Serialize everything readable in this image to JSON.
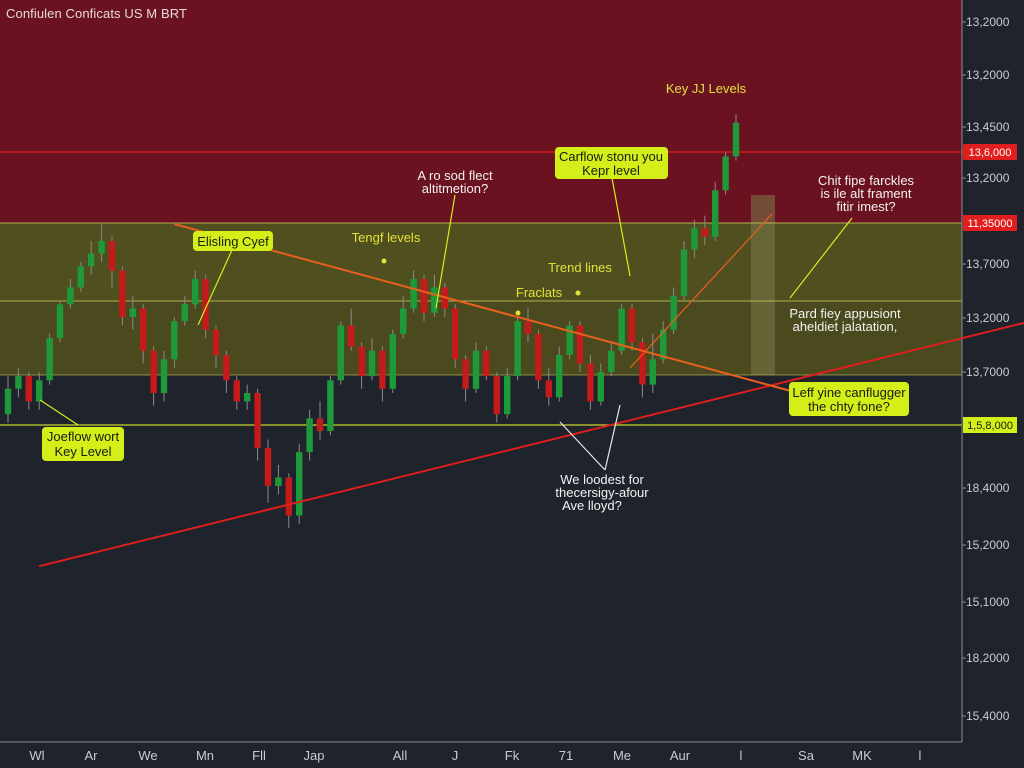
{
  "header": {
    "title": "Confiulen Conficats US M BRT"
  },
  "colors": {
    "background": "#1f232b",
    "resistance_zone": "#6b1220",
    "support_zone": "#4a4a1e",
    "bullish": "#1f9a3a",
    "bearish": "#c41a1a",
    "trendline": "#e01e1e",
    "descending_line": "#e8601e",
    "callout": "#d4ee1a",
    "level_line": "#c9d62a",
    "resistance_line": "#e01e1e"
  },
  "chart_data": {
    "type": "candlestick",
    "title": "Confiulen Conficats US M BRT",
    "y_ticks": [
      "13,2000",
      "13,2000",
      "13,4500",
      "13,2000",
      "13,7000",
      "13,2000",
      "13,7000",
      "18,4000",
      "15,2000",
      "15,1000",
      "18,2000",
      "15,4000"
    ],
    "x_ticks": [
      "Wl",
      "Ar",
      "We",
      "Mn",
      "Fll",
      "Jap",
      "All",
      "J",
      "Fk",
      "71",
      "Me",
      "Aur",
      "l",
      "Sa",
      "MK",
      "l"
    ],
    "level_labels": [
      {
        "text": "13,6,000",
        "color": "#e01e1e"
      },
      {
        "text": "11,35000",
        "color": "#e01e1e"
      },
      {
        "text": "1,5,8,000",
        "color": "#d4ee1a"
      }
    ],
    "zones": [
      {
        "name": "resistance",
        "from": 13.0,
        "to": 14.9
      },
      {
        "name": "support",
        "from": 10.5,
        "to": 13.0
      }
    ],
    "candles": [
      {
        "o": 10.4,
        "c": 11.0,
        "h": 11.3,
        "l": 10.2
      },
      {
        "o": 11.0,
        "c": 11.3,
        "h": 11.5,
        "l": 10.8
      },
      {
        "o": 11.3,
        "c": 10.7,
        "h": 11.4,
        "l": 10.5
      },
      {
        "o": 10.7,
        "c": 11.2,
        "h": 11.4,
        "l": 10.5
      },
      {
        "o": 11.2,
        "c": 12.2,
        "h": 12.3,
        "l": 11.1
      },
      {
        "o": 12.2,
        "c": 13.0,
        "h": 13.1,
        "l": 12.1
      },
      {
        "o": 13.0,
        "c": 13.4,
        "h": 13.6,
        "l": 12.9
      },
      {
        "o": 13.4,
        "c": 13.9,
        "h": 14.0,
        "l": 13.3
      },
      {
        "o": 13.9,
        "c": 14.2,
        "h": 14.5,
        "l": 13.7
      },
      {
        "o": 14.2,
        "c": 14.5,
        "h": 14.9,
        "l": 14.0
      },
      {
        "o": 14.5,
        "c": 13.8,
        "h": 14.6,
        "l": 13.4
      },
      {
        "o": 13.8,
        "c": 12.7,
        "h": 13.9,
        "l": 12.5
      },
      {
        "o": 12.7,
        "c": 12.9,
        "h": 13.2,
        "l": 12.4
      },
      {
        "o": 12.9,
        "c": 11.9,
        "h": 13.0,
        "l": 11.6
      },
      {
        "o": 11.9,
        "c": 10.9,
        "h": 12.0,
        "l": 10.6
      },
      {
        "o": 10.9,
        "c": 11.7,
        "h": 11.9,
        "l": 10.7
      },
      {
        "o": 11.7,
        "c": 12.6,
        "h": 12.7,
        "l": 11.5
      },
      {
        "o": 12.6,
        "c": 13.0,
        "h": 13.2,
        "l": 12.5
      },
      {
        "o": 13.0,
        "c": 13.6,
        "h": 13.8,
        "l": 12.9
      },
      {
        "o": 13.6,
        "c": 12.4,
        "h": 13.7,
        "l": 12.2
      },
      {
        "o": 12.4,
        "c": 11.8,
        "h": 12.5,
        "l": 11.5
      },
      {
        "o": 11.8,
        "c": 11.2,
        "h": 11.9,
        "l": 10.9
      },
      {
        "o": 11.2,
        "c": 10.7,
        "h": 11.3,
        "l": 10.5
      },
      {
        "o": 10.7,
        "c": 10.9,
        "h": 11.1,
        "l": 10.5
      },
      {
        "o": 10.9,
        "c": 9.6,
        "h": 11.0,
        "l": 9.3
      },
      {
        "o": 9.6,
        "c": 8.7,
        "h": 9.8,
        "l": 8.3
      },
      {
        "o": 8.7,
        "c": 8.9,
        "h": 9.2,
        "l": 8.5
      },
      {
        "o": 8.9,
        "c": 8.0,
        "h": 9.0,
        "l": 7.7
      },
      {
        "o": 8.0,
        "c": 9.5,
        "h": 9.7,
        "l": 7.8
      },
      {
        "o": 9.5,
        "c": 10.3,
        "h": 10.5,
        "l": 9.3
      },
      {
        "o": 10.3,
        "c": 10.0,
        "h": 10.7,
        "l": 9.8
      },
      {
        "o": 10.0,
        "c": 11.2,
        "h": 11.3,
        "l": 9.9
      },
      {
        "o": 11.2,
        "c": 12.5,
        "h": 12.6,
        "l": 11.1
      },
      {
        "o": 12.5,
        "c": 12.0,
        "h": 12.9,
        "l": 11.9
      },
      {
        "o": 12.0,
        "c": 11.3,
        "h": 12.1,
        "l": 11.0
      },
      {
        "o": 11.3,
        "c": 11.9,
        "h": 12.2,
        "l": 11.2
      },
      {
        "o": 11.9,
        "c": 11.0,
        "h": 12.0,
        "l": 10.7
      },
      {
        "o": 11.0,
        "c": 12.3,
        "h": 12.4,
        "l": 10.9
      },
      {
        "o": 12.3,
        "c": 12.9,
        "h": 13.2,
        "l": 12.2
      },
      {
        "o": 12.9,
        "c": 13.6,
        "h": 13.8,
        "l": 12.8
      },
      {
        "o": 13.6,
        "c": 12.8,
        "h": 13.7,
        "l": 12.6
      },
      {
        "o": 12.8,
        "c": 13.4,
        "h": 13.7,
        "l": 12.7
      },
      {
        "o": 13.4,
        "c": 12.9,
        "h": 13.5,
        "l": 12.7
      },
      {
        "o": 12.9,
        "c": 11.7,
        "h": 13.0,
        "l": 11.5
      },
      {
        "o": 11.7,
        "c": 11.0,
        "h": 11.8,
        "l": 10.7
      },
      {
        "o": 11.0,
        "c": 11.9,
        "h": 12.1,
        "l": 10.9
      },
      {
        "o": 11.9,
        "c": 11.3,
        "h": 12.0,
        "l": 11.2
      },
      {
        "o": 11.3,
        "c": 10.4,
        "h": 11.4,
        "l": 10.2
      },
      {
        "o": 10.4,
        "c": 11.3,
        "h": 11.5,
        "l": 10.3
      },
      {
        "o": 11.3,
        "c": 12.6,
        "h": 12.7,
        "l": 11.2
      },
      {
        "o": 12.6,
        "c": 12.3,
        "h": 12.9,
        "l": 12.1
      },
      {
        "o": 12.3,
        "c": 11.2,
        "h": 12.4,
        "l": 11.0
      },
      {
        "o": 11.2,
        "c": 10.8,
        "h": 11.5,
        "l": 10.6
      },
      {
        "o": 10.8,
        "c": 11.8,
        "h": 12.0,
        "l": 10.7
      },
      {
        "o": 11.8,
        "c": 12.5,
        "h": 12.6,
        "l": 11.7
      },
      {
        "o": 12.5,
        "c": 11.6,
        "h": 12.6,
        "l": 11.4
      },
      {
        "o": 11.6,
        "c": 10.7,
        "h": 11.8,
        "l": 10.5
      },
      {
        "o": 10.7,
        "c": 11.4,
        "h": 11.6,
        "l": 10.6
      },
      {
        "o": 11.4,
        "c": 11.9,
        "h": 12.1,
        "l": 11.3
      },
      {
        "o": 11.9,
        "c": 12.9,
        "h": 13.0,
        "l": 11.8
      },
      {
        "o": 12.9,
        "c": 12.1,
        "h": 13.0,
        "l": 11.9
      },
      {
        "o": 12.1,
        "c": 11.1,
        "h": 12.2,
        "l": 10.8
      },
      {
        "o": 11.1,
        "c": 11.7,
        "h": 12.3,
        "l": 10.9
      },
      {
        "o": 11.7,
        "c": 12.4,
        "h": 12.6,
        "l": 11.6
      },
      {
        "o": 12.4,
        "c": 13.2,
        "h": 13.4,
        "l": 12.3
      },
      {
        "o": 13.2,
        "c": 14.3,
        "h": 14.5,
        "l": 13.1
      },
      {
        "o": 14.3,
        "c": 14.8,
        "h": 15.0,
        "l": 14.1
      },
      {
        "o": 14.8,
        "c": 14.6,
        "h": 15.1,
        "l": 14.4
      },
      {
        "o": 14.6,
        "c": 15.7,
        "h": 15.9,
        "l": 14.5
      },
      {
        "o": 15.7,
        "c": 16.5,
        "h": 16.6,
        "l": 15.6
      },
      {
        "o": 16.5,
        "c": 17.3,
        "h": 17.5,
        "l": 16.4
      }
    ],
    "lines": [
      {
        "name": "ascending-support",
        "from": [
          3,
          6.8
        ],
        "to": [
          100,
          12.7
        ],
        "color": "#e01e1e"
      },
      {
        "name": "descending-resistance",
        "from": [
          16,
          14.9
        ],
        "to": [
          76,
          10.9
        ],
        "color": "#e8601e"
      }
    ]
  },
  "annotations": {
    "callout_left": [
      "Joeflow wort",
      "Key Level"
    ],
    "callout_blissing": "Elisling Cyef",
    "callout_center": [
      "Carflow stonu you",
      "Kepr level"
    ],
    "callout_right": [
      "Leff yine canflugger",
      "the chty fone?"
    ],
    "label_key_levels": "Key JJ Levels",
    "label_tengf": "Tengf levels",
    "label_trend": "Trend lines",
    "label_fraclats": "Fraclats",
    "note_center": [
      "A ro sod flect",
      "altitmetion?"
    ],
    "note_right_top": [
      "Chit fipe farckles",
      "is ile alt frament",
      "fitir imest?"
    ],
    "note_right_mid": [
      "Pard fiey appusiont",
      "aheldiet jalatation,"
    ],
    "note_bottom": [
      "We loodest for",
      "thecersigy-afour",
      "Ave lloyd?"
    ]
  }
}
